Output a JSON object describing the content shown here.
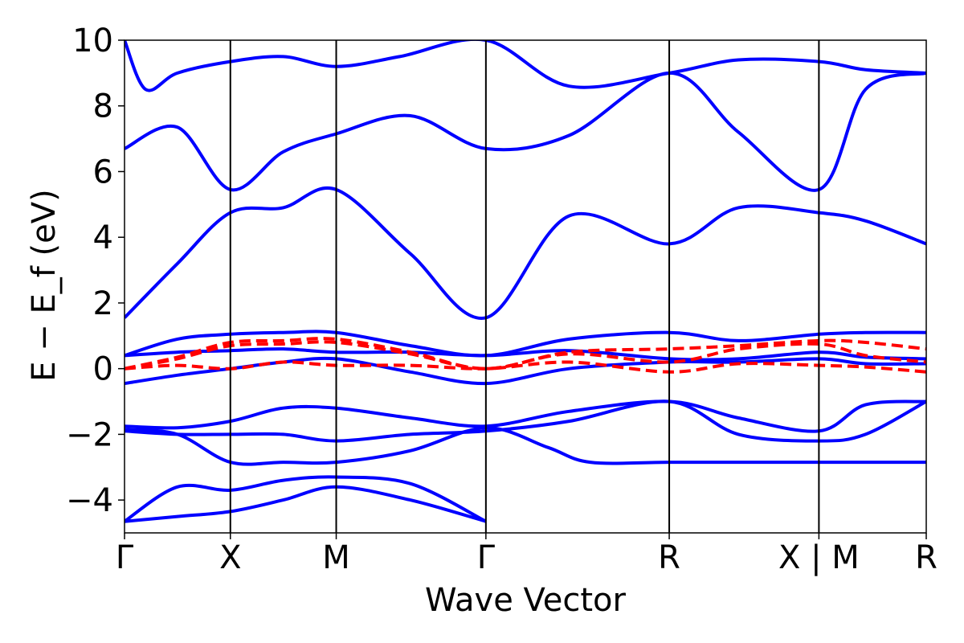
{
  "chart_data": {
    "type": "line",
    "title": "",
    "xlabel": "Wave Vector",
    "ylabel": "E − E_f (eV)",
    "ylim": [
      -5,
      10
    ],
    "grid": false,
    "y_ticks": [
      -4,
      -2,
      0,
      2,
      4,
      6,
      8,
      10
    ],
    "y_tick_labels": [
      "−4",
      "−2",
      "0",
      "2",
      "4",
      "6",
      "8",
      "10"
    ],
    "kpath_ticks": [
      {
        "label": "Γ",
        "x": 0.0
      },
      {
        "label": "X",
        "x": 0.5
      },
      {
        "label": "M",
        "x": 1.0
      },
      {
        "label": "Γ",
        "x": 1.707
      },
      {
        "label": "R",
        "x": 2.573
      },
      {
        "label": "X | M",
        "x": 3.28
      },
      {
        "label": "R",
        "x": 3.787
      }
    ],
    "series": [
      {
        "color": "#0000ff",
        "style": "solid",
        "bands": [
          {
            "x": [
              0,
              0.25,
              0.5,
              0.75,
              1.0,
              1.35,
              1.707,
              2.1,
              2.573,
              2.9,
              3.28,
              3.5,
              3.787
            ],
            "y": [
              -4.65,
              -4.5,
              -4.35,
              -4.0,
              -3.6,
              -4.0,
              -4.65,
              null,
              null,
              null,
              null,
              null,
              null
            ]
          },
          {
            "x": [
              0,
              0.25,
              0.5,
              0.75,
              1.0,
              1.35,
              1.707
            ],
            "y": [
              -4.65,
              -3.6,
              -3.7,
              -3.4,
              -3.3,
              -3.5,
              -4.65
            ]
          },
          {
            "x": [
              0,
              0.25,
              0.5,
              0.75,
              1.0,
              1.35,
              1.707,
              2.0,
              2.2,
              2.573,
              2.9,
              3.28,
              3.5,
              3.787
            ],
            "y": [
              -1.85,
              -2.0,
              -2.85,
              -2.85,
              -2.85,
              -2.5,
              -1.8,
              -2.4,
              -2.85,
              -2.85,
              -2.85,
              -2.85,
              -2.85,
              -2.85
            ]
          },
          {
            "x": [
              0,
              0.25,
              0.5,
              0.75,
              1.0,
              1.35,
              1.707,
              2.1,
              2.573,
              2.9,
              3.28,
              3.5,
              3.787
            ],
            "y": [
              -1.75,
              -1.8,
              -1.6,
              -1.2,
              -1.2,
              -1.5,
              -1.75,
              -1.3,
              -1.0,
              -1.5,
              -1.9,
              -1.1,
              -1.0
            ]
          },
          {
            "x": [
              0,
              0.25,
              0.5,
              0.75,
              1.0,
              1.35,
              1.707,
              2.1,
              2.573,
              2.9,
              3.28,
              3.5,
              3.787
            ],
            "y": [
              -1.9,
              -2.0,
              -2.0,
              -2.0,
              -2.2,
              -2.0,
              -1.9,
              -1.6,
              -1.0,
              -2.0,
              -2.2,
              -2.0,
              -1.0
            ]
          },
          {
            "x": [
              0,
              0.25,
              0.5,
              0.75,
              1.0,
              1.35,
              1.707,
              2.1,
              2.573,
              2.9,
              3.28,
              3.5,
              3.787
            ],
            "y": [
              -0.45,
              -0.2,
              0.0,
              0.2,
              0.3,
              -0.1,
              -0.45,
              0.0,
              0.2,
              0.2,
              0.3,
              0.15,
              0.15
            ]
          },
          {
            "x": [
              0,
              0.25,
              0.5,
              0.75,
              1.0,
              1.35,
              1.707,
              2.1,
              2.573,
              2.9,
              3.28,
              3.5,
              3.787
            ],
            "y": [
              0.4,
              0.5,
              0.55,
              0.6,
              0.5,
              0.5,
              0.4,
              0.55,
              0.3,
              0.3,
              0.5,
              0.35,
              0.3
            ]
          },
          {
            "x": [
              0,
              0.25,
              0.5,
              0.75,
              1.0,
              1.35,
              1.707,
              2.1,
              2.573,
              2.9,
              3.28,
              3.5,
              3.787
            ],
            "y": [
              0.4,
              0.9,
              1.05,
              1.1,
              1.1,
              0.7,
              0.4,
              0.9,
              1.1,
              0.85,
              1.05,
              1.1,
              1.1
            ]
          },
          {
            "x": [
              0,
              0.25,
              0.5,
              0.75,
              1.0,
              1.35,
              1.707,
              2.1,
              2.573,
              2.9,
              3.28,
              3.5,
              3.787
            ],
            "y": [
              1.55,
              3.2,
              4.75,
              4.9,
              5.45,
              3.5,
              1.55,
              4.65,
              3.8,
              4.9,
              4.75,
              4.5,
              3.8
            ]
          },
          {
            "x": [
              0,
              0.25,
              0.5,
              0.75,
              1.0,
              1.35,
              1.707,
              2.1,
              2.573,
              2.9,
              3.28,
              3.5,
              3.787
            ],
            "y": [
              6.7,
              7.35,
              5.45,
              6.6,
              7.15,
              7.7,
              6.7,
              7.1,
              9.0,
              7.2,
              5.45,
              8.5,
              9.0
            ]
          },
          {
            "x": [
              0,
              0.1,
              0.25,
              0.5,
              0.75,
              1.0,
              1.3,
              1.707,
              2.1,
              2.573,
              2.9,
              3.28,
              3.5,
              3.787
            ],
            "y": [
              10.0,
              8.5,
              9.0,
              9.35,
              9.5,
              9.2,
              9.5,
              10.0,
              8.6,
              9.0,
              9.4,
              9.35,
              9.1,
              9.0
            ]
          }
        ]
      },
      {
        "color": "#ff0000",
        "style": "dashed",
        "bands": [
          {
            "x": [
              0,
              0.25,
              0.5,
              0.75,
              1.0,
              1.35,
              1.707,
              2.1,
              2.573,
              2.9,
              3.28,
              3.5,
              3.787
            ],
            "y": [
              0.0,
              0.35,
              0.8,
              0.85,
              0.9,
              0.5,
              0.0,
              0.5,
              0.6,
              0.7,
              0.85,
              0.8,
              0.6
            ]
          },
          {
            "x": [
              0,
              0.25,
              0.5,
              0.75,
              1.0,
              1.35,
              1.707,
              2.1,
              2.573,
              2.9,
              3.28,
              3.5,
              3.787
            ],
            "y": [
              0.0,
              0.3,
              0.7,
              0.75,
              0.8,
              0.45,
              0.0,
              0.45,
              0.2,
              0.6,
              0.75,
              0.4,
              0.2
            ]
          },
          {
            "x": [
              0,
              0.25,
              0.5,
              0.75,
              1.0,
              1.35,
              1.707,
              2.1,
              2.573,
              2.9,
              3.28,
              3.5,
              3.787
            ],
            "y": [
              0.0,
              0.1,
              0.0,
              0.2,
              0.1,
              0.1,
              0.0,
              0.2,
              -0.1,
              0.15,
              0.1,
              0.05,
              -0.1
            ]
          }
        ]
      }
    ]
  }
}
